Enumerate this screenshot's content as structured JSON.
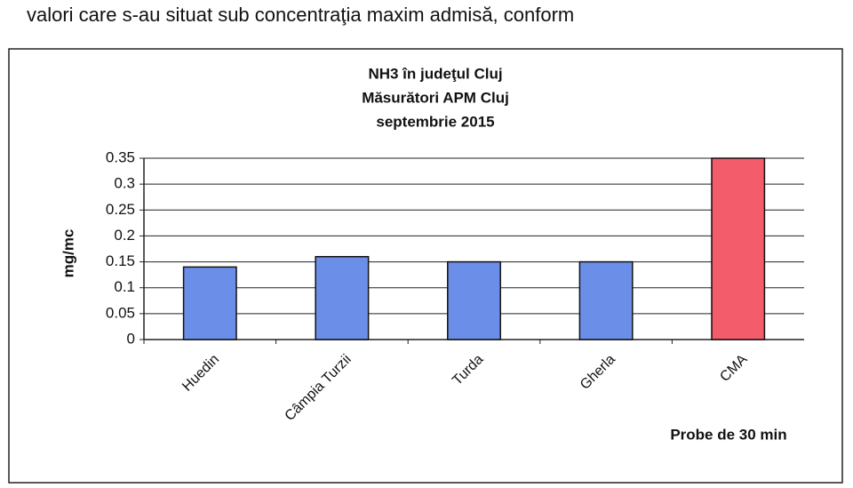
{
  "header_text": "valori care s-au situat sub concentraţia maxim admisă, conform",
  "chart_data": {
    "type": "bar",
    "title": [
      "NH3 în judeţul Cluj",
      "Măsurători APM Cluj",
      "septembrie 2015"
    ],
    "y_label": "mg/mc",
    "x_label": "Probe de 30 min",
    "categories": [
      "Huedin",
      "Câmpia Turzii",
      "Turda",
      "Gherla",
      "CMA"
    ],
    "values": [
      0.14,
      0.16,
      0.15,
      0.15,
      0.35
    ],
    "colors": [
      "#6b8fe8",
      "#6b8fe8",
      "#6b8fe8",
      "#6b8fe8",
      "#f25c6b"
    ],
    "ylim": [
      0,
      0.35
    ],
    "yticks": [
      0,
      0.05,
      0.1,
      0.15,
      0.2,
      0.25,
      0.3,
      0.35
    ],
    "grid": true
  }
}
